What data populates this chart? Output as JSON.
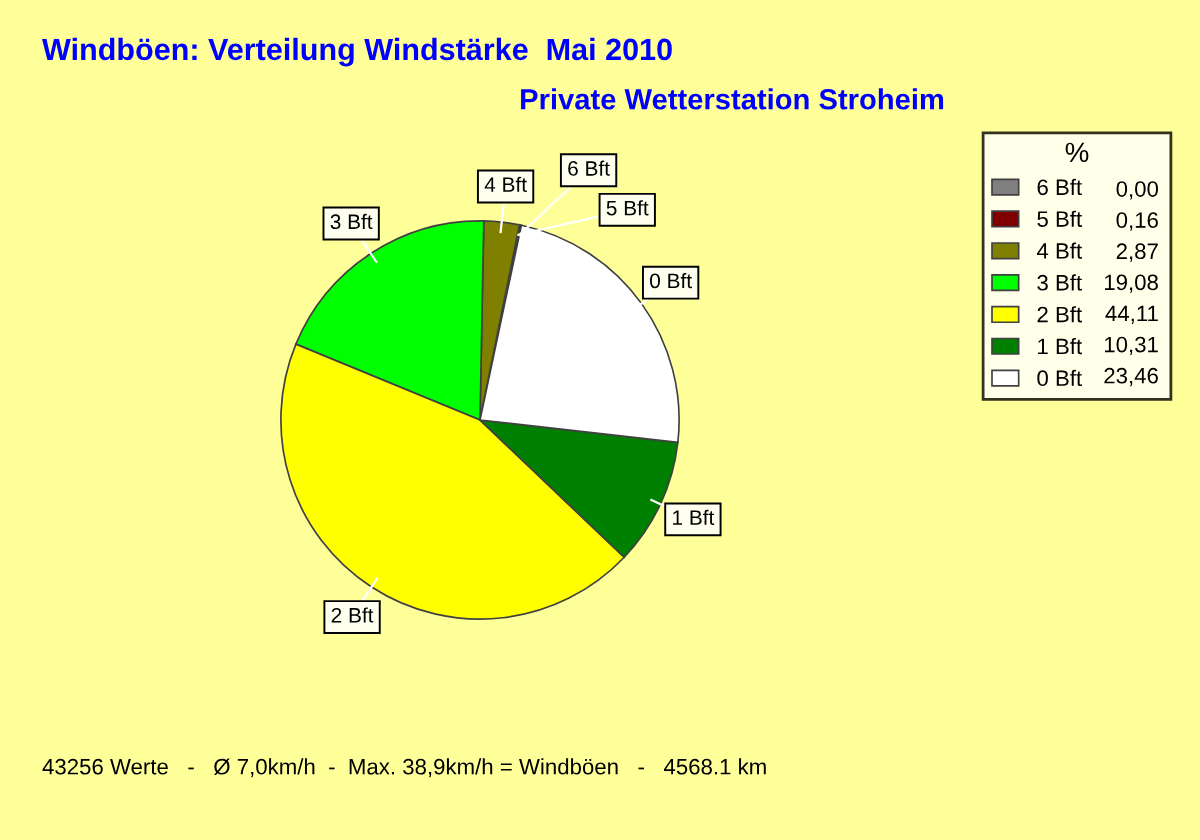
{
  "chart_data": {
    "type": "pie",
    "title": "Windböen: Verteilung Windstärke  Mai 2010",
    "subtitle": "Private Wetterstation Stroheim",
    "categories": [
      "6 Bft",
      "5 Bft",
      "4 Bft",
      "3 Bft",
      "2 Bft",
      "1 Bft",
      "0 Bft"
    ],
    "values": [
      0.0,
      0.16,
      2.87,
      19.08,
      44.11,
      10.31,
      23.46
    ],
    "value_labels": [
      "0,00",
      "0,16",
      "2,87",
      "19,08",
      "44,11",
      "10,31",
      "23,46"
    ],
    "colors": [
      "#808080",
      "#800000",
      "#808000",
      "#00ff00",
      "#ffff00",
      "#008000",
      "#ffffff"
    ],
    "legend_title": "%",
    "legend": "right",
    "annotations": [
      "43256 Werte   -   Ø 7,0km/h  -  Max. 38,9km/h = Windböen   -   4568.1 km"
    ]
  }
}
